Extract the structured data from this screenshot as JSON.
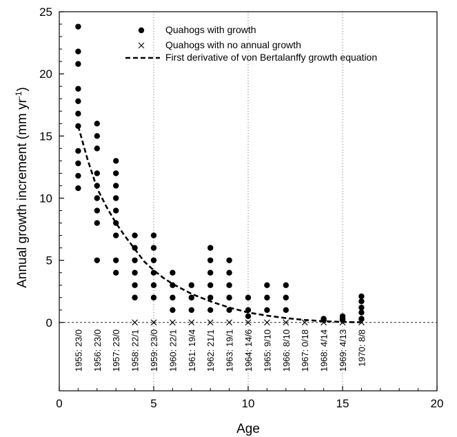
{
  "chart_data": {
    "type": "scatter",
    "xlabel": "Age",
    "ylabel": "Annual growth increment (mm yr",
    "ylabel_sup": "-1",
    "ylabel_close": ")",
    "xlim": [
      0,
      20
    ],
    "ylim": [
      -5.5,
      25
    ],
    "x_ticks": [
      0,
      5,
      10,
      15,
      20
    ],
    "y_ticks": [
      0,
      5,
      10,
      15,
      20,
      25
    ],
    "x_tick_labels": [
      "0",
      "5",
      "10",
      "15",
      "20"
    ],
    "y_tick_labels": [
      "0",
      "5",
      "10",
      "15",
      "20",
      "25"
    ],
    "grid": false,
    "reference_lines": {
      "horizontal_y": 0,
      "vertical_x": [
        5,
        10,
        15
      ]
    },
    "legend": {
      "placement": "top",
      "entries": [
        {
          "marker": "filled-circle",
          "label": "Quahogs with growth"
        },
        {
          "marker": "x-cross",
          "label": "Quahogs with no annual growth"
        },
        {
          "marker": "dashed-line",
          "label": "First derivative of von Bertalanffy growth equation"
        }
      ]
    },
    "series": [
      {
        "name": "Quahogs with growth",
        "points": [
          [
            1,
            23.8
          ],
          [
            1,
            21.8
          ],
          [
            1,
            20.8
          ],
          [
            1,
            18.8
          ],
          [
            1,
            17.8
          ],
          [
            1,
            16.8
          ],
          [
            1,
            15.8
          ],
          [
            1,
            13.8
          ],
          [
            1,
            12.8
          ],
          [
            1,
            11.8
          ],
          [
            1,
            10.8
          ],
          [
            2,
            16
          ],
          [
            2,
            15
          ],
          [
            2,
            14
          ],
          [
            2,
            12
          ],
          [
            2,
            11
          ],
          [
            2,
            10
          ],
          [
            2,
            9
          ],
          [
            2,
            8
          ],
          [
            2,
            5
          ],
          [
            3,
            13
          ],
          [
            3,
            12
          ],
          [
            3,
            11
          ],
          [
            3,
            10
          ],
          [
            3,
            9
          ],
          [
            3,
            8
          ],
          [
            3,
            7
          ],
          [
            3,
            5
          ],
          [
            3,
            4
          ],
          [
            4,
            7
          ],
          [
            4,
            6
          ],
          [
            4,
            5
          ],
          [
            4,
            4
          ],
          [
            4,
            3
          ],
          [
            4,
            2
          ],
          [
            5,
            7
          ],
          [
            5,
            6
          ],
          [
            5,
            5
          ],
          [
            5,
            4
          ],
          [
            5,
            3
          ],
          [
            5,
            2
          ],
          [
            6,
            4
          ],
          [
            6,
            3
          ],
          [
            6,
            2
          ],
          [
            6,
            1
          ],
          [
            7,
            3
          ],
          [
            7,
            2
          ],
          [
            7,
            1
          ],
          [
            8,
            6
          ],
          [
            8,
            5
          ],
          [
            8,
            4
          ],
          [
            8,
            3
          ],
          [
            8,
            2
          ],
          [
            8,
            1
          ],
          [
            9,
            5
          ],
          [
            9,
            4
          ],
          [
            9,
            3
          ],
          [
            9,
            2
          ],
          [
            9,
            1
          ],
          [
            10,
            2
          ],
          [
            10,
            1
          ],
          [
            10,
            0.5
          ],
          [
            11,
            3
          ],
          [
            11,
            2
          ],
          [
            11,
            1
          ],
          [
            12,
            3
          ],
          [
            12,
            2
          ],
          [
            12,
            1
          ],
          [
            14,
            0.3
          ],
          [
            14,
            0.2
          ],
          [
            15,
            0.5
          ],
          [
            15,
            0.3
          ],
          [
            15,
            0.2
          ],
          [
            16,
            2.1
          ],
          [
            16,
            1.7
          ],
          [
            16,
            1.2
          ],
          [
            16,
            0.8
          ],
          [
            16,
            0.3
          ]
        ]
      },
      {
        "name": "Quahogs with no annual growth",
        "points": [
          [
            4,
            0
          ],
          [
            5,
            0
          ],
          [
            6,
            0
          ],
          [
            7,
            0
          ],
          [
            8,
            0
          ],
          [
            9,
            0
          ],
          [
            10,
            0
          ],
          [
            11,
            0
          ],
          [
            12,
            0
          ],
          [
            13,
            0
          ],
          [
            14,
            0
          ],
          [
            15,
            0
          ],
          [
            16,
            0
          ]
        ]
      },
      {
        "name": "First derivative of von Bertalanffy growth equation",
        "curve": [
          [
            1,
            15.8
          ],
          [
            1.5,
            13.1
          ],
          [
            2,
            10.8
          ],
          [
            2.5,
            9.3
          ],
          [
            3,
            8
          ],
          [
            3.5,
            6.9
          ],
          [
            4,
            5.9
          ],
          [
            4.5,
            4.9
          ],
          [
            5,
            4.2
          ],
          [
            5.5,
            3.6
          ],
          [
            6,
            3.1
          ],
          [
            7,
            2.3
          ],
          [
            8,
            1.7
          ],
          [
            9,
            1.2
          ],
          [
            10,
            0.8
          ],
          [
            11,
            0.55
          ],
          [
            12,
            0.35
          ],
          [
            13,
            0.2
          ],
          [
            14,
            0.1
          ],
          [
            15,
            0.04
          ],
          [
            16,
            0.01
          ]
        ]
      }
    ],
    "year_labels": [
      {
        "x": 1,
        "text": "1955: 23/0"
      },
      {
        "x": 2,
        "text": "1956: 23/0"
      },
      {
        "x": 3,
        "text": "1957: 23/0"
      },
      {
        "x": 4,
        "text": "1958: 22/1"
      },
      {
        "x": 5,
        "text": "1959: 23/0"
      },
      {
        "x": 6,
        "text": "1960: 22/1"
      },
      {
        "x": 7,
        "text": "1961: 19/4"
      },
      {
        "x": 8,
        "text": "1962: 21/1"
      },
      {
        "x": 9,
        "text": "1963: 19/1"
      },
      {
        "x": 10,
        "text": "1964: 14/6"
      },
      {
        "x": 11,
        "text": "1965: 9/10"
      },
      {
        "x": 12,
        "text": "1966: 8/10"
      },
      {
        "x": 13,
        "text": "1967: 0/18"
      },
      {
        "x": 14,
        "text": "1968: 4/14"
      },
      {
        "x": 15,
        "text": "1969: 4/13"
      },
      {
        "x": 16,
        "text": "1970: 8/8"
      }
    ]
  }
}
